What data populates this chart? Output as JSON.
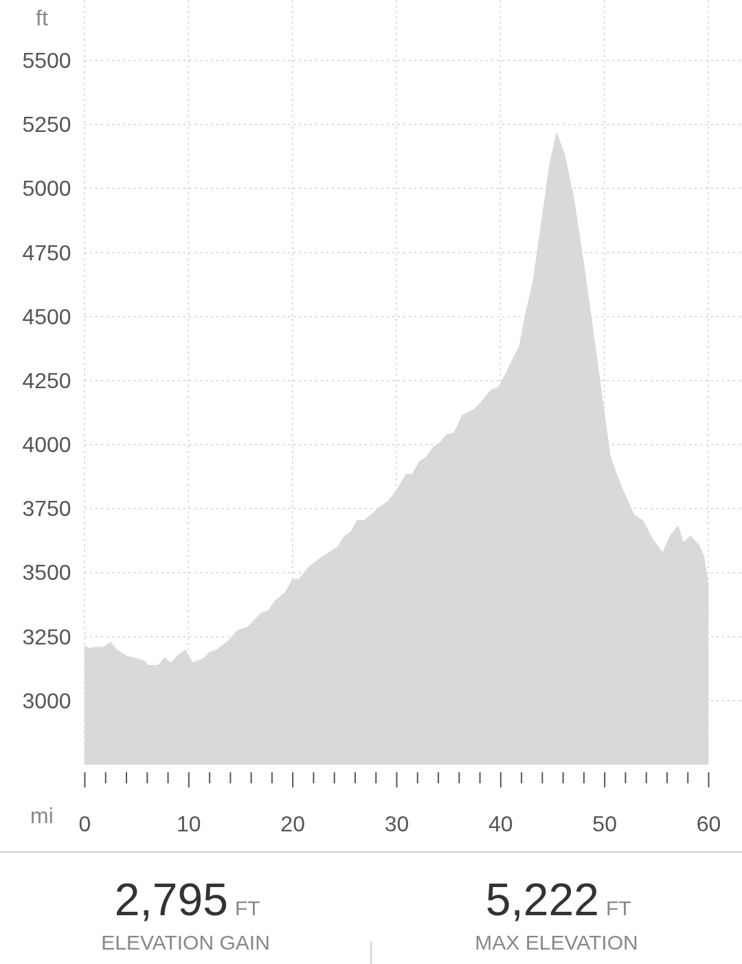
{
  "chart_data": {
    "type": "area",
    "xlabel": "mi",
    "ylabel": "ft",
    "color": "#d9d9d9",
    "grid": true,
    "xlim": [
      0,
      60
    ],
    "ylim": [
      2750,
      5500
    ],
    "xticks": [
      0,
      {
        "value": 2,
        "label": null
      },
      {
        "value": 4,
        "label": null
      },
      {
        "value": 6,
        "label": null
      },
      {
        "value": 8,
        "label": null
      },
      10,
      {
        "value": 12,
        "label": null
      },
      {
        "value": 14,
        "label": null
      },
      {
        "value": 16,
        "label": null
      },
      {
        "value": 18,
        "label": null
      },
      20,
      {
        "value": 22,
        "label": null
      },
      {
        "value": 24,
        "label": null
      },
      {
        "value": 26,
        "label": null
      },
      {
        "value": 28,
        "label": null
      },
      30,
      {
        "value": 32,
        "label": null
      },
      {
        "value": 34,
        "label": null
      },
      {
        "value": 36,
        "label": null
      },
      {
        "value": 38,
        "label": null
      },
      40,
      {
        "value": 42,
        "label": null
      },
      {
        "value": 44,
        "label": null
      },
      {
        "value": 46,
        "label": null
      },
      {
        "value": 48,
        "label": null
      },
      50,
      {
        "value": 52,
        "label": null
      },
      {
        "value": 54,
        "label": null
      },
      {
        "value": 56,
        "label": null
      },
      {
        "value": 58,
        "label": null
      },
      60
    ],
    "yticks": [
      3000,
      3250,
      3500,
      3750,
      4000,
      4250,
      4500,
      4750,
      5000,
      5250,
      5500
    ],
    "x": [
      0,
      0.5,
      0.9,
      1.8,
      2.5,
      3.1,
      4.1,
      5.1,
      5.8,
      6.1,
      7.1,
      7.7,
      8.3,
      8.9,
      9.7,
      10.4,
      11.4,
      12.0,
      12.7,
      13.7,
      14.7,
      15.7,
      17.0,
      17.6,
      18.3,
      19.3,
      20.0,
      20.6,
      21.6,
      22.9,
      24.3,
      24.9,
      25.6,
      26.2,
      26.9,
      27.6,
      28.6,
      29.2,
      30.1,
      30.9,
      31.5,
      32.2,
      32.8,
      33.5,
      34.2,
      34.8,
      35.5,
      36.3,
      37.5,
      38.1,
      39.1,
      39.8,
      40.4,
      41.1,
      41.8,
      42.4,
      43.1,
      44.1,
      44.7,
      45.4,
      46.2,
      47.1,
      48.0,
      49.2,
      50.0,
      50.6,
      51.3,
      52.0,
      52.9,
      53.7,
      54.7,
      55.6,
      56.3,
      57.1,
      57.6,
      58.3,
      59.1,
      59.6,
      60
    ],
    "values": [
      3215,
      3205,
      3210,
      3210,
      3230,
      3200,
      3175,
      3165,
      3155,
      3140,
      3140,
      3170,
      3150,
      3175,
      3200,
      3150,
      3165,
      3190,
      3200,
      3230,
      3275,
      3290,
      3345,
      3350,
      3390,
      3425,
      3475,
      3475,
      3525,
      3565,
      3600,
      3640,
      3660,
      3705,
      3705,
      3730,
      3765,
      3780,
      3830,
      3885,
      3885,
      3935,
      3950,
      3990,
      4010,
      4040,
      4045,
      4115,
      4140,
      4165,
      4215,
      4225,
      4270,
      4330,
      4385,
      4515,
      4635,
      4920,
      5095,
      5222,
      5135,
      4960,
      4720,
      4370,
      4130,
      3955,
      3875,
      3805,
      3725,
      3705,
      3630,
      3580,
      3645,
      3685,
      3620,
      3645,
      3610,
      3565,
      3460
    ],
    "annotations": [
      "2,795",
      "FT",
      "ELEVATION GAIN",
      "5,222",
      "FT",
      "MAX ELEVATION"
    ]
  }
}
